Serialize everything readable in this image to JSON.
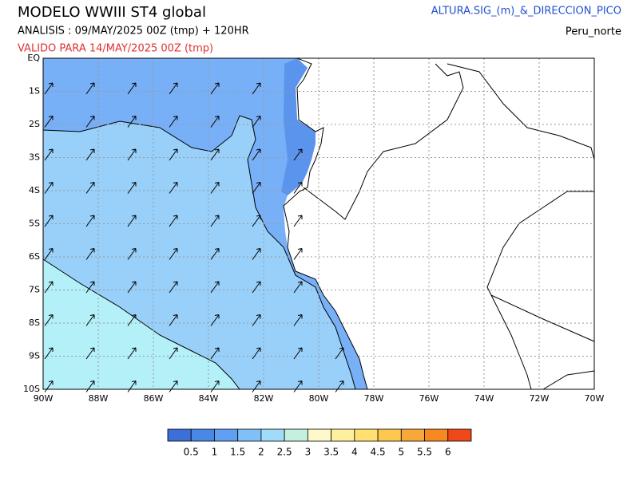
{
  "header": {
    "title": "MODELO  WWIII  ST4  global",
    "analysis": "ANALISIS : 09/MAY/2025 00Z  (tmp) + 120HR",
    "valid": "VALIDO PARA  14/MAY/2025 00Z  (tmp)",
    "variable": "ALTURA.SIG_(m)_&_DIRECCION_PICO",
    "region": "Peru_norte"
  },
  "map": {
    "lat_labels": [
      "EQ",
      "1S",
      "2S",
      "3S",
      "4S",
      "5S",
      "6S",
      "7S",
      "8S",
      "9S",
      "10S"
    ],
    "lon_labels": [
      "90W",
      "88W",
      "86W",
      "84W",
      "82W",
      "80W",
      "78W",
      "76W",
      "74W",
      "72W",
      "70W"
    ]
  },
  "colorbar": {
    "colors": [
      "#3c70d8",
      "#4a88e6",
      "#60a0f2",
      "#80c0f8",
      "#a0dcfa",
      "#c4f0e0",
      "#fff8c8",
      "#fff0a0",
      "#ffe070",
      "#fcc850",
      "#f8a838",
      "#f88820",
      "#f04818"
    ],
    "labels": [
      "0.5",
      "1",
      "1.5",
      "2",
      "2.5",
      "3",
      "3.5",
      "4",
      "4.5",
      "5",
      "5.5",
      "6"
    ]
  }
}
